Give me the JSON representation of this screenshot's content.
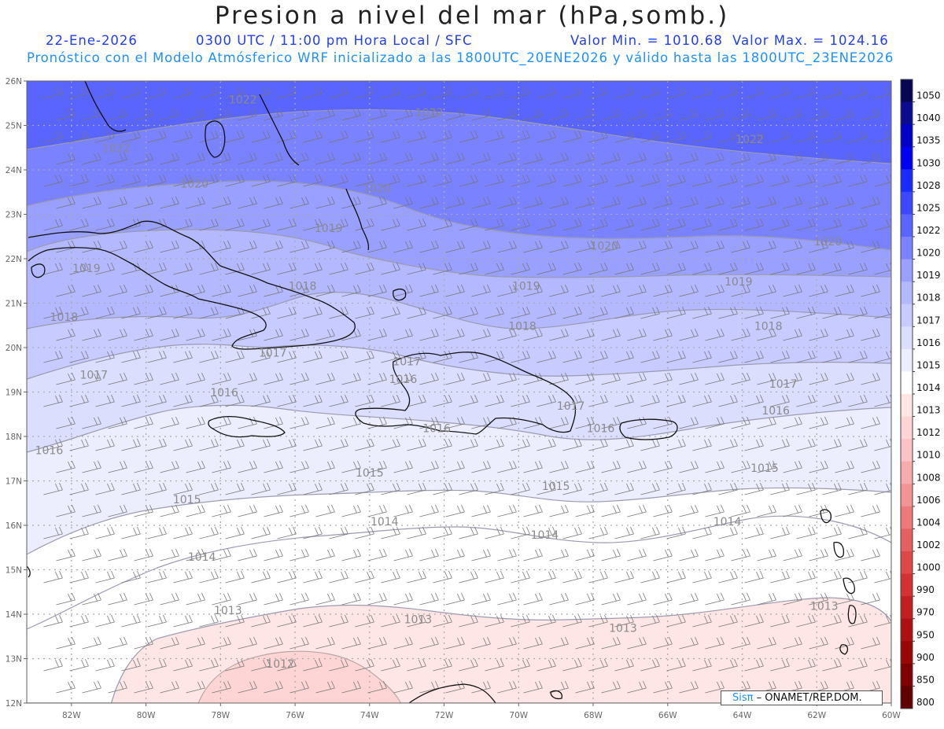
{
  "header": {
    "title": "Presion a nivel del mar (hPa,somb.)",
    "date": "22-Ene-2026",
    "time": "0300 UTC / 11:00 pm Hora Local / SFC",
    "min_label": "Valor Min. = 1010.68",
    "max_label": "Valor Max. = 1024.16",
    "model_line": "Pronóstico con el Modelo Atmósferico WRF inicializado a las 1800UTC_20ENE2026 y válido hasta las  1800UTC_23ENE2026"
  },
  "axes": {
    "lat_labels": [
      "26N",
      "25N",
      "24N",
      "23N",
      "22N",
      "21N",
      "20N",
      "19N",
      "18N",
      "17N",
      "16N",
      "15N",
      "14N",
      "13N",
      "12N"
    ],
    "lon_labels": [
      "82W",
      "80W",
      "78W",
      "76W",
      "74W",
      "72W",
      "70W",
      "68W",
      "66W",
      "64W",
      "62W",
      "60W"
    ],
    "lat_range": [
      12,
      26
    ],
    "lon_range": [
      -83.2,
      -60
    ]
  },
  "colorbar": {
    "levels": [
      "1050",
      "1040",
      "1035",
      "1030",
      "1028",
      "1025",
      "1022",
      "1020",
      "1019",
      "1018",
      "1017",
      "1016",
      "1015",
      "1014",
      "1013",
      "1012",
      "1010",
      "1008",
      "1006",
      "1004",
      "1002",
      "1000",
      "990",
      "970",
      "950",
      "900",
      "850",
      "800"
    ],
    "colors": [
      "#060654",
      "#0b0b8f",
      "#0000c8",
      "#0000f5",
      "#1a2bff",
      "#3b48ff",
      "#5a64ff",
      "#7a82ff",
      "#9aa0ff",
      "#b4b8ff",
      "#c8cbff",
      "#dcdefd",
      "#eceefd",
      "#ffffff",
      "#ffe6e6",
      "#fdd5d5",
      "#fbc3c3",
      "#f7acac",
      "#f29494",
      "#ec7a7a",
      "#e56060",
      "#de4848",
      "#d23232",
      "#c21f1f",
      "#ad1010",
      "#980606",
      "#7e0000",
      "#600000"
    ]
  },
  "contour_labels": [
    {
      "text": "1022",
      "lon": -80.8,
      "lat": 24.4
    },
    {
      "text": "1022",
      "lon": -77.4,
      "lat": 25.5
    },
    {
      "text": "1022",
      "lon": -72.4,
      "lat": 25.2
    },
    {
      "text": "1022",
      "lon": -63.8,
      "lat": 24.6
    },
    {
      "text": "1020",
      "lon": -78.7,
      "lat": 23.6
    },
    {
      "text": "1020",
      "lon": -73.8,
      "lat": 23.5
    },
    {
      "text": "1020",
      "lon": -67.7,
      "lat": 22.2
    },
    {
      "text": "1020",
      "lon": -61.7,
      "lat": 22.3
    },
    {
      "text": "1019",
      "lon": -81.6,
      "lat": 21.7
    },
    {
      "text": "1019",
      "lon": -75.1,
      "lat": 22.6
    },
    {
      "text": "1019",
      "lon": -69.8,
      "lat": 21.3
    },
    {
      "text": "1019",
      "lon": -64.1,
      "lat": 21.4
    },
    {
      "text": "1018",
      "lon": -82.2,
      "lat": 20.6
    },
    {
      "text": "1018",
      "lon": -75.8,
      "lat": 21.3
    },
    {
      "text": "1018",
      "lon": -69.9,
      "lat": 20.4
    },
    {
      "text": "1018",
      "lon": -63.3,
      "lat": 20.4
    },
    {
      "text": "1017",
      "lon": -81.4,
      "lat": 19.3
    },
    {
      "text": "1017",
      "lon": -76.6,
      "lat": 19.8
    },
    {
      "text": "1017",
      "lon": -73.0,
      "lat": 19.6
    },
    {
      "text": "1017",
      "lon": -68.6,
      "lat": 18.6
    },
    {
      "text": "1017",
      "lon": -62.9,
      "lat": 19.1
    },
    {
      "text": "1016",
      "lon": -82.6,
      "lat": 17.6
    },
    {
      "text": "1016",
      "lon": -77.9,
      "lat": 18.9
    },
    {
      "text": "1016",
      "lon": -73.1,
      "lat": 19.2
    },
    {
      "text": "1016",
      "lon": -72.2,
      "lat": 18.1
    },
    {
      "text": "1016",
      "lon": -67.8,
      "lat": 18.1
    },
    {
      "text": "1016",
      "lon": -63.1,
      "lat": 18.5
    },
    {
      "text": "1015",
      "lon": -78.9,
      "lat": 16.5
    },
    {
      "text": "1015",
      "lon": -74.0,
      "lat": 17.1
    },
    {
      "text": "1015",
      "lon": -69.0,
      "lat": 16.8
    },
    {
      "text": "1015",
      "lon": -63.4,
      "lat": 17.2
    },
    {
      "text": "1014",
      "lon": -78.5,
      "lat": 15.2
    },
    {
      "text": "1014",
      "lon": -73.6,
      "lat": 16.0
    },
    {
      "text": "1014",
      "lon": -69.3,
      "lat": 15.7
    },
    {
      "text": "1014",
      "lon": -64.4,
      "lat": 16.0
    },
    {
      "text": "1013",
      "lon": -77.8,
      "lat": 14.0
    },
    {
      "text": "1013",
      "lon": -72.7,
      "lat": 13.8
    },
    {
      "text": "1013",
      "lon": -67.2,
      "lat": 13.6
    },
    {
      "text": "1013",
      "lon": -61.8,
      "lat": 14.1
    },
    {
      "text": "1012",
      "lon": -76.4,
      "lat": 12.8
    }
  ],
  "credit": {
    "brand": "Sisπ",
    "text": "– ONAMET/REP.DOM."
  }
}
